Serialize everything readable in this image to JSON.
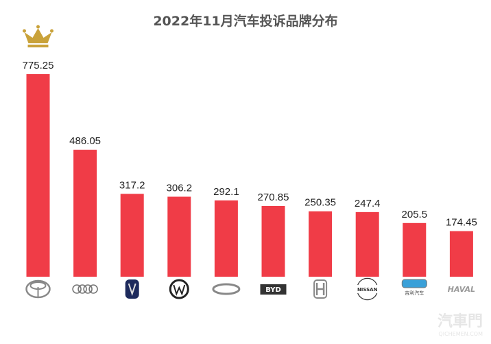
{
  "chart_data": {
    "type": "bar",
    "title": "2022年11月汽车投诉品牌分布",
    "categories": [
      "Toyota",
      "Audi",
      "Changan",
      "Volkswagen",
      "Chery",
      "BYD",
      "Honda",
      "Nissan",
      "Geely",
      "Haval"
    ],
    "category_display": [
      "logo",
      "logo",
      "logo",
      "logo",
      "logo",
      "BYD",
      "logo",
      "NISSAN",
      "吉利汽车",
      "HAVAL"
    ],
    "values": [
      775.25,
      486.05,
      317.2,
      306.2,
      292.1,
      270.85,
      250.35,
      247.4,
      205.5,
      174.45
    ],
    "value_labels": [
      "775.25",
      "486.05",
      "317.2",
      "306.2",
      "292.1",
      "270.85",
      "250.35",
      "247.4",
      "205.5",
      "174.45"
    ],
    "ylim": [
      0,
      775.25
    ],
    "grid": false,
    "bar_color": "#f03c47",
    "crown_color": "#c9a23a",
    "xlabel": "",
    "ylabel": ""
  },
  "watermark": {
    "cn": "汽車門",
    "en": "QICHEMEN.COM"
  }
}
